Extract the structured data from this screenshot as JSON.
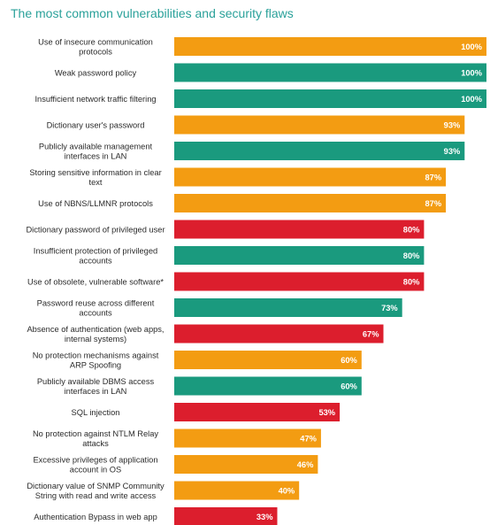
{
  "chart_data": {
    "type": "bar",
    "orientation": "horizontal",
    "title": "The most common vulnerabilities and security flaws",
    "value_suffix": "%",
    "xlim": [
      0,
      100
    ],
    "grid": false,
    "legend": "none",
    "colors": {
      "orange": "#f39c12",
      "green": "#1a9a7e",
      "red": "#dc1e2d"
    },
    "categories": [
      [
        "Use of insecure communication",
        "protocols"
      ],
      [
        "Weak password policy"
      ],
      [
        "Insufficient network traffic filtering"
      ],
      [
        "Dictionary user's password"
      ],
      [
        "Publicly available management",
        "interfaces in LAN"
      ],
      [
        "Storing sensitive information in clear",
        "text"
      ],
      [
        "Use of NBNS/LLMNR protocols"
      ],
      [
        "Dictionary password of privileged user"
      ],
      [
        "Insufficient protection of privileged",
        "accounts"
      ],
      [
        "Use of obsolete, vulnerable software*"
      ],
      [
        "Password reuse across different",
        "accounts"
      ],
      [
        "Absence of authentication (web apps,",
        "internal systems)"
      ],
      [
        "No protection mechanisms against",
        "ARP Spoofing"
      ],
      [
        "Publicly available DBMS access",
        "interfaces in LAN"
      ],
      [
        "SQL injection"
      ],
      [
        "No protection against NTLM Relay",
        "attacks"
      ],
      [
        "Excessive privileges of application",
        "account in OS"
      ],
      [
        "Dictionary value of SNMP Community",
        "String with read and write access"
      ],
      [
        "Authentication Bypass in web app"
      ]
    ],
    "values": [
      100,
      100,
      100,
      93,
      93,
      87,
      87,
      80,
      80,
      80,
      73,
      67,
      60,
      60,
      53,
      47,
      46,
      40,
      33
    ],
    "bar_colors": [
      "orange",
      "green",
      "green",
      "orange",
      "green",
      "orange",
      "orange",
      "red",
      "green",
      "red",
      "green",
      "red",
      "orange",
      "green",
      "red",
      "orange",
      "orange",
      "orange",
      "red"
    ]
  }
}
